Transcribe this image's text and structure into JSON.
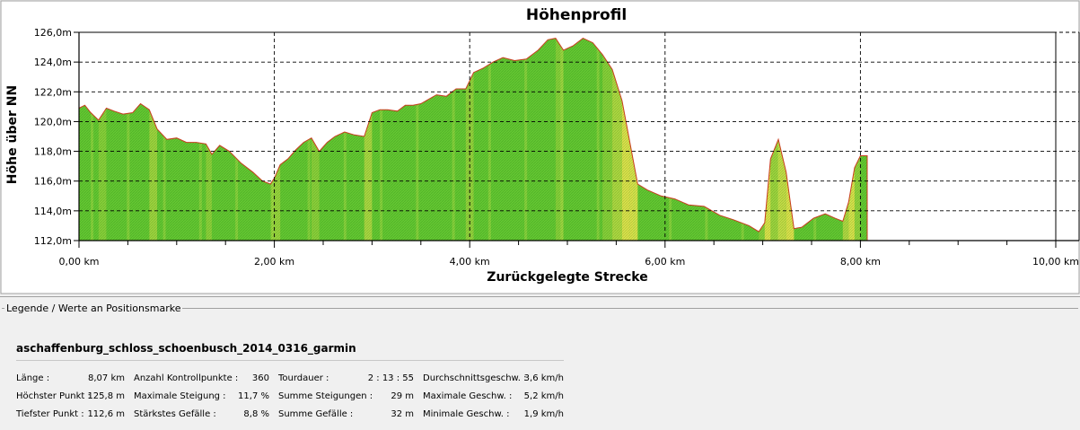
{
  "chart_data": {
    "type": "area",
    "title": "Höhenprofil",
    "xlabel": "Zurückgelegte Strecke",
    "ylabel": "Höhe über NN",
    "xlim": [
      0,
      10
    ],
    "ylim": [
      112,
      126
    ],
    "x_ticks": [
      "0,00 km",
      "2,00 km",
      "4,00 km",
      "6,00 km",
      "8,00 km",
      "10,00 km"
    ],
    "y_ticks": [
      "112,0m",
      "114,0m",
      "116,0m",
      "118,0m",
      "120,0m",
      "122,0m",
      "124,0m",
      "126,0m"
    ],
    "grid": true,
    "series": [
      {
        "x": [
          0.0,
          0.06,
          0.12,
          0.2,
          0.28,
          0.36,
          0.45,
          0.55,
          0.63,
          0.72,
          0.8,
          0.9,
          1.0,
          1.1,
          1.2,
          1.3,
          1.36,
          1.44,
          1.54,
          1.66,
          1.78,
          1.88,
          1.96,
          2.0,
          2.06,
          2.14,
          2.22,
          2.3,
          2.38,
          2.46,
          2.54,
          2.62,
          2.72,
          2.82,
          2.92,
          3.0,
          3.08,
          3.16,
          3.26,
          3.34,
          3.42,
          3.5,
          3.58,
          3.66,
          3.76,
          3.86,
          3.96,
          4.04,
          4.14,
          4.24,
          4.34,
          4.46,
          4.58,
          4.7,
          4.8,
          4.88,
          4.96,
          5.06,
          5.16,
          5.26,
          5.36,
          5.46,
          5.56,
          5.64,
          5.72,
          5.82,
          5.96,
          6.1,
          6.24,
          6.4,
          6.56,
          6.7,
          6.86,
          6.96,
          7.02,
          7.08,
          7.16,
          7.24,
          7.32,
          7.4,
          7.52,
          7.64,
          7.74,
          7.82,
          7.88,
          7.94,
          8.0,
          8.07
        ],
        "y": [
          120.9,
          121.1,
          120.6,
          120.1,
          120.9,
          120.7,
          120.5,
          120.6,
          121.2,
          120.8,
          119.5,
          118.8,
          118.9,
          118.6,
          118.6,
          118.5,
          117.8,
          118.4,
          118.0,
          117.2,
          116.6,
          116.0,
          115.8,
          116.2,
          117.1,
          117.5,
          118.1,
          118.6,
          118.9,
          118.0,
          118.6,
          119.0,
          119.3,
          119.1,
          119.0,
          120.6,
          120.8,
          120.8,
          120.7,
          121.1,
          121.1,
          121.2,
          121.5,
          121.8,
          121.7,
          122.2,
          122.2,
          123.3,
          123.6,
          124.0,
          124.3,
          124.1,
          124.2,
          124.8,
          125.5,
          125.6,
          124.8,
          125.1,
          125.6,
          125.3,
          124.5,
          123.5,
          121.4,
          118.6,
          115.8,
          115.4,
          115.0,
          114.8,
          114.4,
          114.3,
          113.7,
          113.4,
          113.0,
          112.6,
          113.2,
          117.5,
          118.8,
          116.6,
          112.8,
          112.9,
          113.5,
          113.8,
          113.5,
          113.3,
          114.6,
          116.9,
          117.7,
          117.7
        ]
      }
    ],
    "x_end_km": 8.07
  },
  "legend": {
    "caption": "Legende / Werte an Positionsmarke",
    "track_name": "aschaffenburg_schloss_schoenbusch_2014_0316_garmin",
    "rows": [
      [
        {
          "label": "Länge :",
          "value": "8,07 km"
        },
        {
          "label": "Anzahl Kontrollpunkte :",
          "value": "360"
        },
        {
          "label": "Tourdauer :",
          "value": "2 : 13 : 55"
        },
        {
          "label": "Durchschnittsgeschw. :",
          "value": "3,6 km/h"
        }
      ],
      [
        {
          "label": "Höchster Punkt :",
          "value": "125,8 m"
        },
        {
          "label": "Maximale Steigung :",
          "value": "11,7 %"
        },
        {
          "label": "Summe Steigungen :",
          "value": "29 m"
        },
        {
          "label": "Maximale Geschw. :",
          "value": "5,2 km/h"
        }
      ],
      [
        {
          "label": "Tiefster Punkt :",
          "value": "112,6 m"
        },
        {
          "label": "Stärkstes Gefälle :",
          "value": "8,8 %"
        },
        {
          "label": "Summe Gefälle :",
          "value": "32 m"
        },
        {
          "label": "Minimale Geschw. :",
          "value": "1,9 km/h"
        }
      ]
    ]
  },
  "colors": {
    "fill_green": "#64c832",
    "fill_yellow": "#f0e650",
    "outline": "#c83c1e"
  }
}
